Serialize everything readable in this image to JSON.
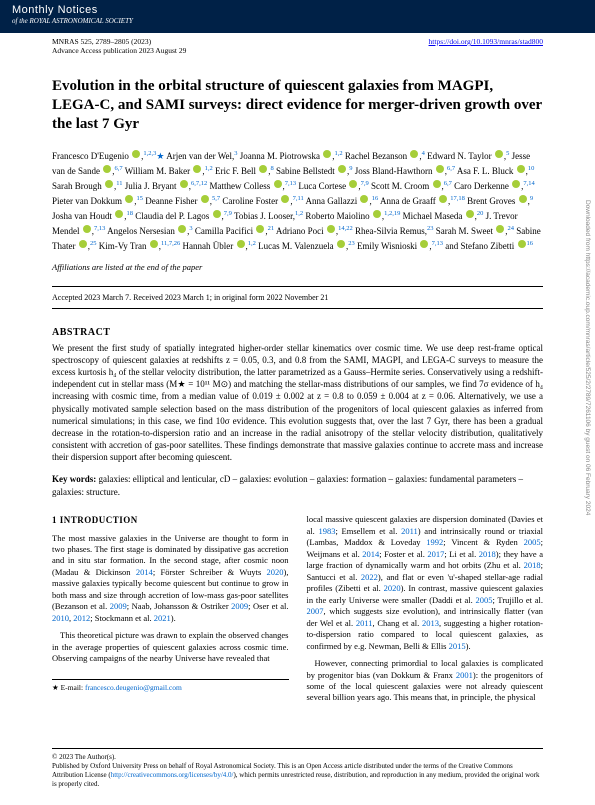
{
  "journal": {
    "name": "Monthly Notices",
    "subtitle": "of the",
    "society": "ROYAL ASTRONOMICAL SOCIETY",
    "citation": "MNRAS 525, 2789–2805 (2023)",
    "doi": "https://doi.org/10.1093/mnras/stad800",
    "advance": "Advance Access publication 2023 August 29"
  },
  "title": "Evolution in the orbital structure of quiescent galaxies from MAGPI, LEGA-C, and SAMI surveys: direct evidence for merger-driven growth over the last 7 Gyr",
  "authors_html": "Francesco D'Eugenio <span class='orcid'></span>,<span class='sup'>1,2,3</span><span class='star'>★</span> Arjen van der Wel,<span class='sup'>3</span> Joanna M. Piotrowska <span class='orcid'></span>,<span class='sup'>1,2</span> Rachel Bezanson <span class='orcid'></span>,<span class='sup'>4</span> Edward N. Taylor <span class='orcid'></span>,<span class='sup'>5</span> Jesse van de Sande <span class='orcid'></span>,<span class='sup'>6,7</span> William M. Baker <span class='orcid'></span>,<span class='sup'>1,2</span> Eric F. Bell <span class='orcid'></span>,<span class='sup'>8</span> Sabine Bellstedt <span class='orcid'></span>,<span class='sup'>9</span> Joss Bland-Hawthorn <span class='orcid'></span>,<span class='sup'>6,7</span> Asa F. L. Bluck <span class='orcid'></span>,<span class='sup'>10</span> Sarah Brough <span class='orcid'></span>,<span class='sup'>11</span> Julia J. Bryant <span class='orcid'></span>,<span class='sup'>6,7,12</span> Matthew Colless <span class='orcid'></span>,<span class='sup'>7,13</span> Luca Cortese <span class='orcid'></span>,<span class='sup'>7,9</span> Scott M. Croom <span class='orcid'></span>,<span class='sup'>6,7</span> Caro Derkenne <span class='orcid'></span>,<span class='sup'>7,14</span> Pieter van Dokkum <span class='orcid'></span>,<span class='sup'>15</span> Deanne Fisher <span class='orcid'></span>,<span class='sup'>5,7</span> Caroline Foster <span class='orcid'></span>,<span class='sup'>7,11</span> Anna Gallazzi <span class='orcid'></span>,<span class='sup'>16</span> Anna de Graaff <span class='orcid'></span>,<span class='sup'>17,18</span> Brent Groves <span class='orcid'></span>,<span class='sup'>9</span> Josha van Houdt <span class='orcid'></span>,<span class='sup'>18</span> Claudia del P. Lagos <span class='orcid'></span>,<span class='sup'>7,9</span> Tobias J. Looser,<span class='sup'>1,2</span> Roberto Maiolino <span class='orcid'></span>,<span class='sup'>1,2,19</span> Michael Maseda <span class='orcid'></span>,<span class='sup'>20</span> J. Trevor Mendel <span class='orcid'></span>,<span class='sup'>7,13</span> Angelos Nersesian <span class='orcid'></span>,<span class='sup'>3</span> Camilla Pacifici <span class='orcid'></span>,<span class='sup'>21</span> Adriano Poci <span class='orcid'></span>,<span class='sup'>14,22</span> Rhea-Silvia Remus,<span class='sup'>23</span> Sarah M. Sweet <span class='orcid'></span>,<span class='sup'>24</span> Sabine Thater <span class='orcid'></span>,<span class='sup'>25</span> Kim-Vy Tran <span class='orcid'></span>,<span class='sup'>11,7,26</span> Hannah Übler <span class='orcid'></span>,<span class='sup'>1,2</span> Lucas M. Valenzuela <span class='orcid'></span>,<span class='sup'>23</span> Emily Wisnioski <span class='orcid'></span>,<span class='sup'>7,13</span> and Stefano Zibetti <span class='orcid'></span><span class='sup'>16</span>",
  "aff_note": "Affiliations are listed at the end of the paper",
  "dates": "Accepted 2023 March 7. Received 2023 March 1; in original form 2022 November 21",
  "abstract_head": "ABSTRACT",
  "abstract": "We present the first study of spatially integrated higher-order stellar kinematics over cosmic time. We use deep rest-frame optical spectroscopy of quiescent galaxies at redshifts z = 0.05, 0.3, and 0.8 from the SAMI, MAGPI, and LEGA-C surveys to measure the excess kurtosis h₄ of the stellar velocity distribution, the latter parametrized as a Gauss–Hermite series. Conservatively using a redshift-independent cut in stellar mass (M★ = 10¹¹ M⊙) and matching the stellar-mass distributions of our samples, we find 7σ evidence of h₄ increasing with cosmic time, from a median value of 0.019 ± 0.002 at z = 0.8 to 0.059 ± 0.004 at z = 0.06. Alternatively, we use a physically motivated sample selection based on the mass distribution of the progenitors of local quiescent galaxies as inferred from numerical simulations; in this case, we find 10σ evidence. This evolution suggests that, over the last 7 Gyr, there has been a gradual decrease in the rotation-to-dispersion ratio and an increase in the radial anisotropy of the stellar velocity distribution, qualitatively consistent with accretion of gas-poor satellites. These findings demonstrate that massive galaxies continue to accrete mass and increase their dispersion support after becoming quiescent.",
  "keywords_label": "Key words:",
  "keywords": "galaxies: elliptical and lenticular, cD – galaxies: evolution – galaxies: formation – galaxies: fundamental parameters – galaxies: structure.",
  "section1_head": "1 INTRODUCTION",
  "col1_p1": "The most massive galaxies in the Universe are thought to form in two phases. The first stage is dominated by dissipative gas accretion and in situ star formation. In the second stage, after cosmic noon (Madau & Dickinson 2014; Förster Schreiber & Wuyts 2020), massive galaxies typically become quiescent but continue to grow in both mass and size through accretion of low-mass gas-poor satellites (Bezanson et al. 2009; Naab, Johansson & Ostriker 2009; Oser et al. 2010, 2012; Stockmann et al. 2021).",
  "col1_p2": "This theoretical picture was drawn to explain the observed changes in the average properties of quiescent galaxies across cosmic time. Observing campaigns of the nearby Universe have revealed that",
  "col2_p1": "local massive quiescent galaxies are dispersion dominated (Davies et al. 1983; Emsellem et al. 2011) and intrinsically round or triaxial (Lambas, Maddox & Loveday 1992; Vincent & Ryden 2005; Weijmans et al. 2014; Foster et al. 2017; Li et al. 2018); they have a large fraction of dynamically warm and hot orbits (Zhu et al. 2018; Santucci et al. 2022), and flat or even 'u'-shaped stellar-age radial profiles (Zibetti et al. 2020). In contrast, massive quiescent galaxies in the early Universe were smaller (Daddi et al. 2005; Trujillo et al. 2007, which suggests size evolution), and intrinsically flatter (van der Wel et al. 2011, Chang et al. 2013, suggesting a higher rotation-to-dispersion ratio compared to local quiescent galaxies, as confirmed by e.g. Newman, Belli & Ellis 2015).",
  "col2_p2": "However, connecting primordial to local galaxies is complicated by progenitor bias (van Dokkum & Franx 2001): the progenitors of some of the local quiescent galaxies were not already quiescent several billion years ago. This means that, in principle, the physical",
  "email_label": "★ E-mail:",
  "email": "francesco.deugenio@gmail.com",
  "footer_copyright": "© 2023 The Author(s).",
  "footer_license": "Published by Oxford University Press on behalf of Royal Astronomical Society. This is an Open Access article distributed under the terms of the Creative Commons Attribution License (http://creativecommons.org/licenses/by/4.0/), which permits unrestricted reuse, distribution, and reproduction in any medium, provided the original work is properly cited.",
  "side_text": "Downloaded from https://academic.oup.com/mnras/article/525/2/2789/7261106 by guest on 06 February 2024"
}
